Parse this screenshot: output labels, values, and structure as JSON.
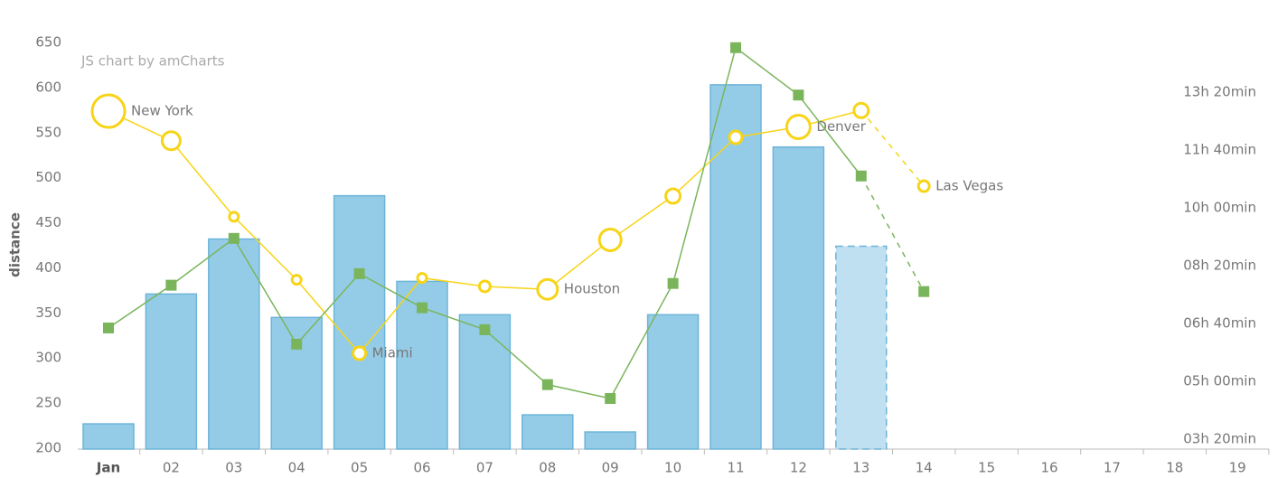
{
  "chart_data": {
    "type": "combo",
    "credit": "JS chart by amCharts",
    "y_axis_label": "distance",
    "categories": [
      "Jan",
      "02",
      "03",
      "04",
      "05",
      "06",
      "07",
      "08",
      "09",
      "10",
      "11",
      "12",
      "13",
      "14",
      "15",
      "16",
      "17",
      "18",
      "19"
    ],
    "ylim": [
      200,
      650
    ],
    "yticks": [
      200,
      250,
      300,
      350,
      400,
      450,
      500,
      550,
      600,
      650
    ],
    "y2lim": [
      184,
      886
    ],
    "y2ticks": [
      {
        "value": 200,
        "label": "03h 20min"
      },
      {
        "value": 300,
        "label": "05h 00min"
      },
      {
        "value": 400,
        "label": "06h 40min"
      },
      {
        "value": 500,
        "label": "08h 20min"
      },
      {
        "value": 600,
        "label": "10h 00min"
      },
      {
        "value": 700,
        "label": "11h 40min"
      },
      {
        "value": 800,
        "label": "13h 20min"
      }
    ],
    "y3lim": [
      20,
      44.93
    ],
    "dashed_from": 12,
    "grid": false,
    "series": [
      {
        "type": "bar",
        "color": "#94cce7",
        "values": [
          227,
          371,
          432,
          345,
          480,
          385,
          348,
          237,
          218,
          348,
          603,
          534,
          424,
          null,
          null,
          null,
          null,
          null,
          null
        ]
      },
      {
        "type": "bubble",
        "axis": "y3",
        "color": "#f7d417",
        "values": [
          40.71,
          38.89,
          34.22,
          30.35,
          25.83,
          30.46,
          29.94,
          29.76,
          32.8,
          35.49,
          39.1,
          39.74,
          40.75,
          36.1,
          null,
          null,
          null,
          null,
          null
        ],
        "sizes": [
          18,
          10,
          5,
          5,
          7,
          5,
          6,
          11,
          12,
          8,
          7,
          13,
          8,
          6,
          null,
          null,
          null,
          null,
          null
        ],
        "labels": [
          "New York",
          null,
          null,
          null,
          "Miami",
          null,
          null,
          "Houston",
          null,
          null,
          null,
          "Denver",
          null,
          "Las Vegas",
          null,
          null,
          null,
          null,
          null
        ]
      },
      {
        "type": "line",
        "axis": "y2",
        "color": "#7ab55c",
        "values": [
          392,
          466,
          547,
          364,
          486,
          427,
          389,
          294,
          270,
          469,
          877,
          795,
          655,
          455,
          null,
          null,
          null,
          null,
          null
        ]
      }
    ]
  }
}
